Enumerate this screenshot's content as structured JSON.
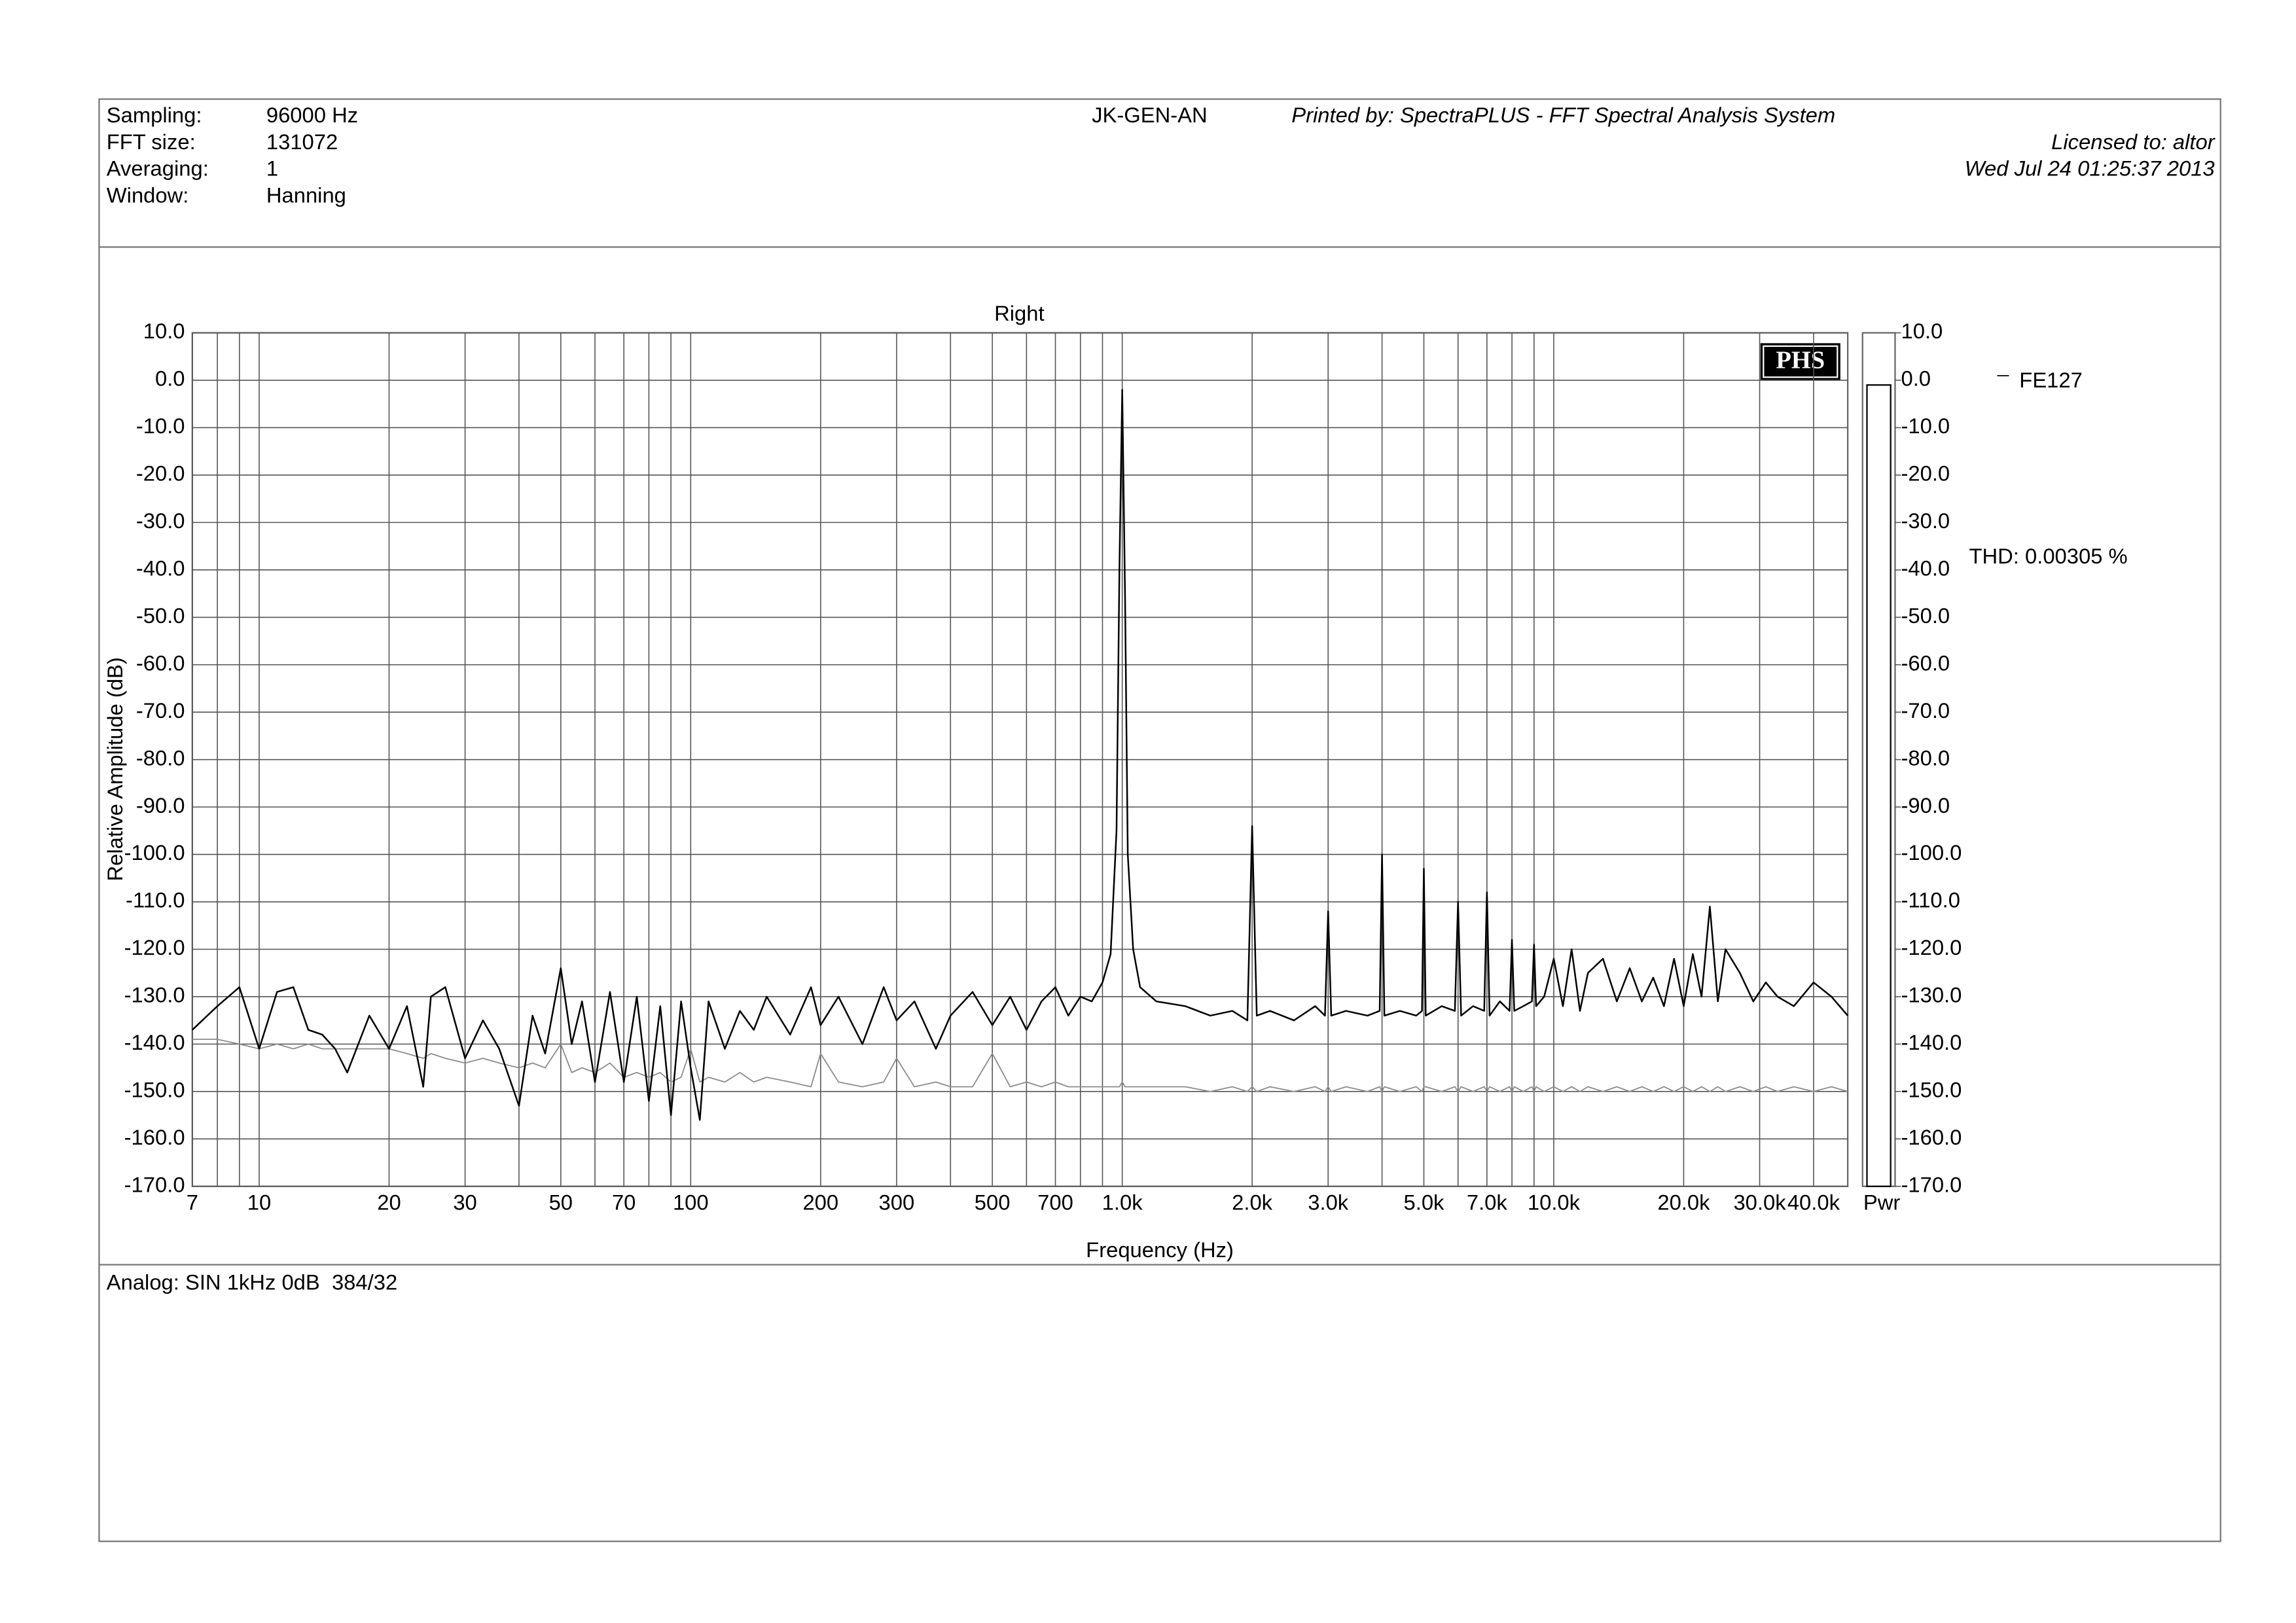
{
  "header": {
    "fields": [
      {
        "label": "Sampling:",
        "value": "96000 Hz"
      },
      {
        "label": "FFT size:",
        "value": "131072"
      },
      {
        "label": "Averaging:",
        "value": "1"
      },
      {
        "label": "Window:",
        "value": "Hanning"
      }
    ],
    "station": "JK-GEN-AN",
    "printed_by": "Printed by: SpectraPLUS - FFT Spectral Analysis System",
    "license": "Licensed to: altor",
    "date": "Wed Jul 24 01:25:37 2013"
  },
  "chart_data": {
    "type": "line",
    "title": "Right",
    "x_label": "Frequency (Hz)",
    "y_label": "Relative Amplitude (dB)",
    "log_x": true,
    "grid": true,
    "logo": "PHS",
    "annotation": "THD: 0.00305 %",
    "pwr": {
      "label": "Pwr",
      "value": -1.0
    },
    "xlim": [
      7,
      48000
    ],
    "ylim": [
      -170,
      10
    ],
    "xticks": [
      7,
      10,
      20,
      30,
      50,
      70,
      100,
      200,
      300,
      500,
      700,
      {
        "value": 1000,
        "label": "1.0k"
      },
      {
        "value": 2000,
        "label": "2.0k"
      },
      {
        "value": 3000,
        "label": "3.0k"
      },
      {
        "value": 5000,
        "label": "5.0k"
      },
      {
        "value": 7000,
        "label": "7.0k"
      },
      {
        "value": 10000,
        "label": "10.0k"
      },
      {
        "value": 20000,
        "label": "20.0k"
      },
      {
        "value": 30000,
        "label": "30.0k"
      },
      {
        "value": 40000,
        "label": "40.0k"
      }
    ],
    "xminor": [
      8,
      9,
      40,
      60,
      80,
      90,
      400,
      600,
      800,
      900,
      4000,
      6000,
      8000,
      9000
    ],
    "yticks": [
      {
        "value": 10,
        "label": "10.0"
      },
      {
        "value": 0,
        "label": "0.0"
      },
      {
        "value": -10,
        "label": "-10.0"
      },
      {
        "value": -20,
        "label": "-20.0"
      },
      {
        "value": -30,
        "label": "-30.0"
      },
      {
        "value": -40,
        "label": "-40.0"
      },
      {
        "value": -50,
        "label": "-50.0"
      },
      {
        "value": -60,
        "label": "-60.0"
      },
      {
        "value": -70,
        "label": "-70.0"
      },
      {
        "value": -80,
        "label": "-80.0"
      },
      {
        "value": -90,
        "label": "-90.0"
      },
      {
        "value": -100,
        "label": "-100.0"
      },
      {
        "value": -110,
        "label": "-110.0"
      },
      {
        "value": -120,
        "label": "-120.0"
      },
      {
        "value": -130,
        "label": "-130.0"
      },
      {
        "value": -140,
        "label": "-140.0"
      },
      {
        "value": -150,
        "label": "-150.0"
      },
      {
        "value": -160,
        "label": "-160.0"
      },
      {
        "value": -170,
        "label": "-170.0"
      }
    ],
    "x": [
      7,
      8,
      9,
      10,
      11,
      12,
      13,
      14,
      15,
      16,
      18,
      20,
      22,
      24,
      25,
      27,
      30,
      33,
      36,
      40,
      43,
      46,
      50,
      53,
      56,
      60,
      65,
      70,
      75,
      80,
      85,
      90,
      95,
      100,
      105,
      110,
      120,
      130,
      140,
      150,
      170,
      190,
      200,
      220,
      250,
      280,
      300,
      330,
      370,
      400,
      450,
      500,
      550,
      600,
      650,
      700,
      750,
      800,
      850,
      900,
      940,
      970,
      985,
      1000,
      1015,
      1030,
      1060,
      1100,
      1200,
      1400,
      1600,
      1800,
      1950,
      2000,
      2050,
      2200,
      2500,
      2800,
      2950,
      3000,
      3050,
      3300,
      3700,
      3950,
      4000,
      4050,
      4400,
      4800,
      4950,
      5000,
      5050,
      5500,
      5900,
      6000,
      6100,
      6500,
      6900,
      7000,
      7100,
      7500,
      7900,
      8000,
      8100,
      8500,
      8900,
      9000,
      9100,
      9500,
      10000,
      10500,
      11000,
      11500,
      12000,
      13000,
      14000,
      15000,
      16000,
      17000,
      18000,
      19000,
      20000,
      21000,
      22000,
      23000,
      24000,
      25000,
      27000,
      29000,
      31000,
      33000,
      36000,
      40000,
      44000,
      48000
    ],
    "series": [
      {
        "name": "FE127",
        "color": "#000000",
        "values": [
          -137,
          -132,
          -128,
          -141,
          -129,
          -128,
          -137,
          -138,
          -141,
          -146,
          -134,
          -141,
          -132,
          -149,
          -130,
          -128,
          -143,
          -135,
          -141,
          -153,
          -134,
          -142,
          -124,
          -140,
          -131,
          -148,
          -129,
          -148,
          -130,
          -152,
          -132,
          -155,
          -131,
          -145,
          -156,
          -131,
          -141,
          -133,
          -137,
          -130,
          -138,
          -128,
          -136,
          -130,
          -140,
          -128,
          -135,
          -131,
          -141,
          -134,
          -129,
          -136,
          -130,
          -137,
          -131,
          -128,
          -134,
          -130,
          -131,
          -127,
          -121,
          -95,
          -40,
          -2,
          -45,
          -100,
          -120,
          -128,
          -131,
          -132,
          -134,
          -133,
          -135,
          -94,
          -134,
          -133,
          -135,
          -132,
          -134,
          -112,
          -134,
          -133,
          -134,
          -133,
          -100,
          -134,
          -133,
          -134,
          -133,
          -103,
          -134,
          -132,
          -133,
          -110,
          -134,
          -132,
          -133,
          -108,
          -134,
          -131,
          -133,
          -118,
          -133,
          -132,
          -131,
          -119,
          -132,
          -130,
          -122,
          -132,
          -120,
          -133,
          -125,
          -122,
          -131,
          -124,
          -131,
          -126,
          -132,
          -122,
          -132,
          -121,
          -130,
          -111,
          -131,
          -120,
          -125,
          -131,
          -127,
          -130,
          -132,
          -127,
          -130,
          -134
        ]
      },
      {
        "color": "#8c8c8c",
        "values": [
          -139,
          -139,
          -140,
          -141,
          -140,
          -141,
          -140,
          -141,
          -141,
          -141,
          -141,
          -141,
          -142,
          -143,
          -142,
          -143,
          -144,
          -143,
          -144,
          -145,
          -144,
          -145,
          -140,
          -146,
          -145,
          -146,
          -144,
          -147,
          -146,
          -147,
          -146,
          -148,
          -147,
          -141,
          -148,
          -147,
          -148,
          -146,
          -148,
          -147,
          -148,
          -149,
          -142,
          -148,
          -149,
          -148,
          -143,
          -149,
          -148,
          -149,
          -149,
          -142,
          -149,
          -148,
          -149,
          -148,
          -149,
          -149,
          -149,
          -149,
          -149,
          -149,
          -149,
          -148,
          -149,
          -149,
          -149,
          -149,
          -149,
          -149,
          -150,
          -149,
          -150,
          -149,
          -150,
          -149,
          -150,
          -149,
          -150,
          -149,
          -150,
          -149,
          -150,
          -149,
          -150,
          -149,
          -150,
          -149,
          -150,
          -149,
          -149,
          -150,
          -149,
          -150,
          -149,
          -150,
          -149,
          -150,
          -149,
          -150,
          -149,
          -150,
          -149,
          -150,
          -149,
          -150,
          -149,
          -150,
          -149,
          -150,
          -149,
          -150,
          -149,
          -150,
          -149,
          -150,
          -149,
          -150,
          -149,
          -150,
          -149,
          -150,
          -149,
          -150,
          -149,
          -150,
          -149,
          -150,
          -149,
          -150,
          -149,
          -150,
          -149,
          -150
        ]
      }
    ]
  },
  "footer": {
    "note": "Analog: SIN 1kHz 0dB  384/32"
  }
}
